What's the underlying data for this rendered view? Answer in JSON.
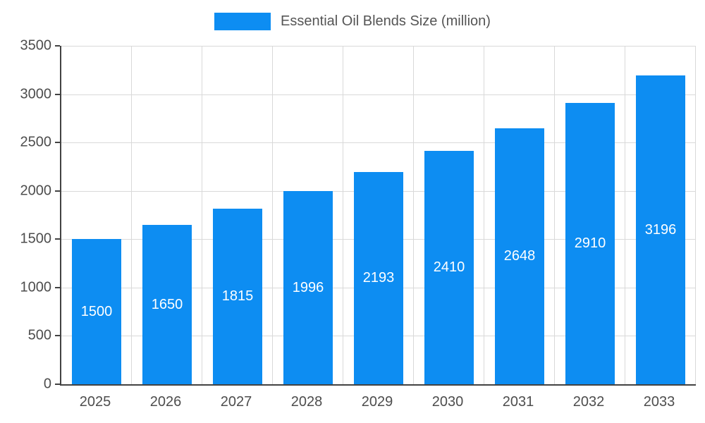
{
  "legend": {
    "label": "Essential Oil Blends Size (million)"
  },
  "chart_data": {
    "type": "bar",
    "title": "Essential Oil Blends Size (million)",
    "categories": [
      "2025",
      "2026",
      "2027",
      "2028",
      "2029",
      "2030",
      "2031",
      "2032",
      "2033"
    ],
    "values": [
      1500,
      1650,
      1815,
      1996,
      2193,
      2410,
      2648,
      2910,
      3196
    ],
    "xlabel": "",
    "ylabel": "",
    "ylim": [
      0,
      3500
    ],
    "yticks": [
      0,
      500,
      1000,
      1500,
      2000,
      2500,
      3000,
      3500
    ],
    "grid": true,
    "legend_position": "top",
    "bar_color": "#0d8df2",
    "label_color": "#ffffff"
  },
  "colors": {
    "axis": "#424242",
    "grid": "#d9d9d9",
    "tick_text": "#4d4d4d",
    "title_text": "#555555"
  }
}
